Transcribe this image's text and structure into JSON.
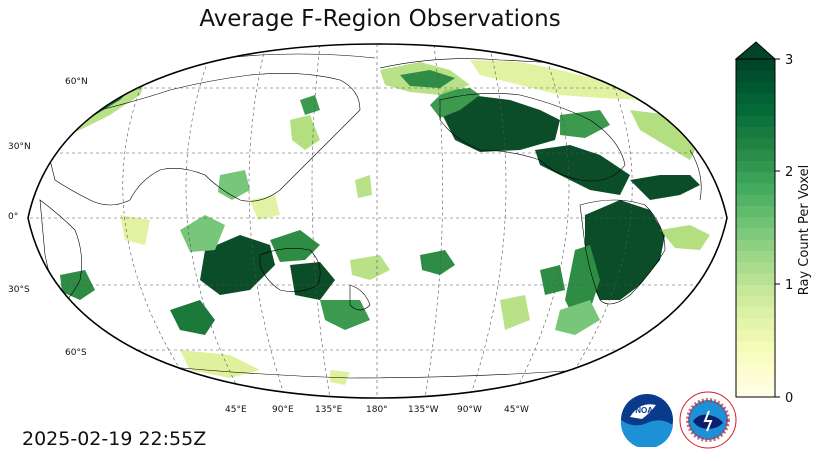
{
  "title": "Average F-Region Observations",
  "timestamp": "2025-02-19 22:55Z",
  "lat_labels": [
    "60°N",
    "30°N",
    "0°",
    "30°S",
    "60°S"
  ],
  "lon_labels": [
    "45°E",
    "90°E",
    "135°E",
    "180°",
    "135°W",
    "90°W",
    "45°W"
  ],
  "colorbar": {
    "label": "Ray Count Per Voxel",
    "ticks": [
      "0",
      "1",
      "2",
      "3"
    ],
    "range": [
      0,
      3
    ],
    "extend": "max",
    "colormap": "YlGn",
    "colors": {
      "low": "#ffffe5",
      "mid": "#78c679",
      "high": "#004529"
    }
  },
  "logos": {
    "noaa": {
      "icon": "noaa-logo",
      "text": "NOAA"
    },
    "nws": {
      "icon": "nws-logo",
      "ring_text": "NATIONAL WEATHER SERVICE"
    }
  }
}
